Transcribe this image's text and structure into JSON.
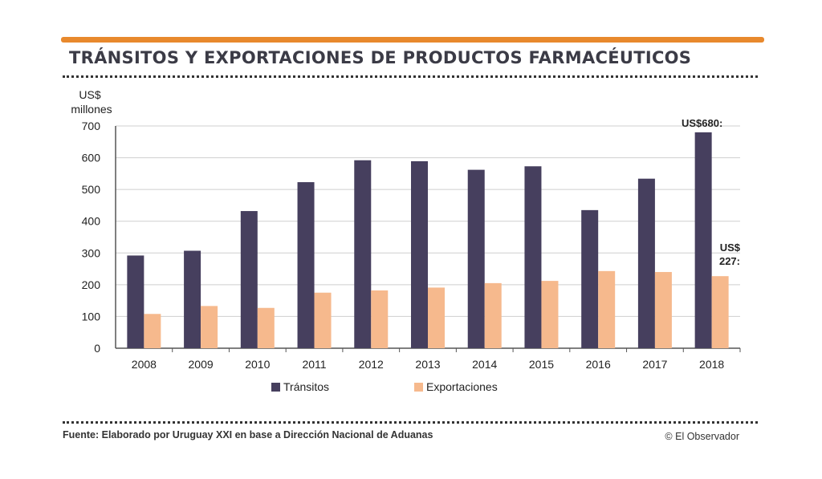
{
  "header": {
    "title": "TRÁNSITOS Y EXPORTACIONES DE PRODUCTOS FARMACÉUTICOS"
  },
  "footer": {
    "source": "Fuente: Elaborado por Uruguay XXI en base a Dirección Nacional de Aduanas",
    "credit": "© El Observador"
  },
  "colors": {
    "accent_bar": "#e8892d",
    "transitos": "#463f5e",
    "exportaciones": "#f6b98d",
    "grid": "#cfcfcf",
    "axis": "#555555"
  },
  "chart_data": {
    "type": "bar",
    "title": "TRÁNSITOS Y EXPORTACIONES DE PRODUCTOS FARMACÉUTICOS",
    "ylabel_line1": "US$",
    "ylabel_line2": "millones",
    "xlabel": "",
    "ylim": [
      0,
      700
    ],
    "yticks": [
      0,
      100,
      200,
      300,
      400,
      500,
      600,
      700
    ],
    "categories": [
      "2008",
      "2009",
      "2010",
      "2011",
      "2012",
      "2013",
      "2014",
      "2015",
      "2016",
      "2017",
      "2018"
    ],
    "series": [
      {
        "name": "Tránsitos",
        "color": "#463f5e",
        "values": [
          292,
          307,
          432,
          523,
          592,
          589,
          562,
          573,
          435,
          534,
          680
        ]
      },
      {
        "name": "Exportaciones",
        "color": "#f6b98d",
        "values": [
          108,
          133,
          127,
          175,
          182,
          191,
          205,
          212,
          243,
          240,
          227
        ]
      }
    ],
    "annotations": [
      {
        "text": "US$680:",
        "category": "2018",
        "series": "Tránsitos"
      },
      {
        "text": "US$ 227:",
        "line1": "US$",
        "line2": "227:",
        "category": "2018",
        "series": "Exportaciones"
      }
    ],
    "grid": true,
    "legend_position": "bottom"
  }
}
